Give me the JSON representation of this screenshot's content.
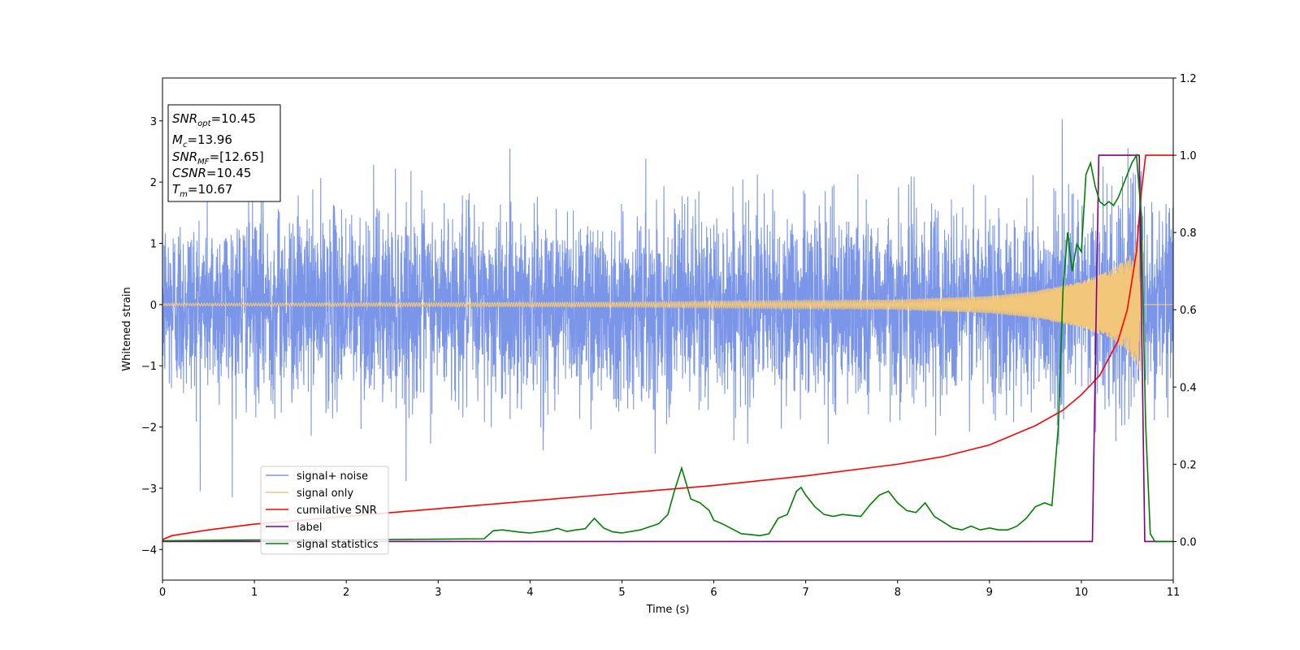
{
  "chart_data": {
    "type": "line",
    "xlabel": "Time (s)",
    "ylabel": "Whitened strain",
    "xlim": [
      0,
      11
    ],
    "ylim_left": [
      -4.5,
      3.7
    ],
    "ylim_right": [
      -0.1,
      1.2
    ],
    "x_ticks": [
      0,
      1,
      2,
      3,
      4,
      5,
      6,
      7,
      8,
      9,
      10,
      11
    ],
    "y_ticks_left": [
      -4,
      -3,
      -2,
      -1,
      0,
      1,
      2,
      3
    ],
    "y_ticks_right": [
      0.0,
      0.2,
      0.4,
      0.6,
      0.8,
      1.0,
      1.2
    ],
    "y_tick_labels_left": [
      "−4",
      "−3",
      "−2",
      "−1",
      "0",
      "1",
      "2",
      "3"
    ],
    "y_tick_labels_right": [
      "0.0",
      "0.2",
      "0.4",
      "0.6",
      "0.8",
      "1.0",
      "1.2"
    ],
    "grid": false,
    "legend_position": "lower-left",
    "info_box": {
      "snr_opt_label": "SNR",
      "snr_opt_sub": "opt",
      "snr_opt_value": "=10.45",
      "mc_label": "M",
      "mc_sub": "c",
      "mc_value": "=13.96",
      "snr_mf_label": "SNR",
      "snr_mf_sub": "MF",
      "snr_mf_value": "=[12.65]",
      "csnr_label": "CSNR",
      "csnr_value": "=10.45",
      "tm_label": "T",
      "tm_sub": "m",
      "tm_value": "=10.67"
    },
    "series": [
      {
        "name": "signal+ noise",
        "axis": "left",
        "color": "#7b96e8",
        "noise_std": 0.75,
        "y_range": [
          -4.15,
          3.3
        ]
      },
      {
        "name": "signal only",
        "axis": "left",
        "color": "#f2c77a",
        "envelope_x": [
          0,
          5,
          8,
          9,
          9.5,
          10,
          10.3,
          10.5,
          10.6,
          10.67
        ],
        "envelope_y": [
          0.02,
          0.04,
          0.08,
          0.14,
          0.22,
          0.38,
          0.55,
          0.75,
          1.0,
          1.3
        ]
      },
      {
        "name": "cumilative SNR",
        "axis": "right",
        "color": "#ff0000",
        "x": [
          0,
          0.1,
          0.5,
          1,
          2,
          3,
          4,
          5,
          6,
          7,
          8,
          8.5,
          9,
          9.5,
          9.8,
          10,
          10.2,
          10.4,
          10.5,
          10.6,
          10.65,
          10.7,
          11
        ],
        "y": [
          0.005,
          0.015,
          0.03,
          0.045,
          0.065,
          0.085,
          0.105,
          0.125,
          0.145,
          0.17,
          0.2,
          0.22,
          0.25,
          0.3,
          0.34,
          0.38,
          0.43,
          0.52,
          0.6,
          0.75,
          0.9,
          1.0,
          1.0
        ]
      },
      {
        "name": "label",
        "axis": "right",
        "color": "#800080",
        "x": [
          0,
          10.12,
          10.19,
          10.63,
          10.69,
          11
        ],
        "y": [
          0,
          0,
          1,
          1,
          0,
          0
        ]
      },
      {
        "name": "signal statistics",
        "axis": "right",
        "color": "#008000",
        "x": [
          0,
          0.5,
          1,
          1.5,
          2,
          2.5,
          3,
          3.5,
          3.6,
          3.7,
          3.9,
          4.0,
          4.2,
          4.3,
          4.4,
          4.5,
          4.6,
          4.7,
          4.8,
          4.9,
          5.0,
          5.2,
          5.3,
          5.4,
          5.5,
          5.57,
          5.65,
          5.75,
          5.85,
          5.95,
          6.0,
          6.1,
          6.3,
          6.4,
          6.5,
          6.6,
          6.7,
          6.8,
          6.9,
          6.95,
          7.0,
          7.1,
          7.2,
          7.3,
          7.4,
          7.6,
          7.7,
          7.8,
          7.9,
          8.0,
          8.1,
          8.2,
          8.3,
          8.4,
          8.5,
          8.6,
          8.7,
          8.8,
          8.9,
          9.0,
          9.1,
          9.2,
          9.3,
          9.4,
          9.5,
          9.6,
          9.68,
          9.75,
          9.8,
          9.85,
          9.9,
          9.95,
          10.0,
          10.05,
          10.1,
          10.15,
          10.2,
          10.25,
          10.3,
          10.35,
          10.4,
          10.45,
          10.5,
          10.55,
          10.6,
          10.65,
          10.7,
          10.75,
          10.8,
          11
        ],
        "y": [
          0.002,
          0.003,
          0.004,
          0.004,
          0.005,
          0.005,
          0.006,
          0.007,
          0.028,
          0.03,
          0.024,
          0.022,
          0.028,
          0.034,
          0.026,
          0.03,
          0.033,
          0.06,
          0.035,
          0.025,
          0.022,
          0.03,
          0.038,
          0.046,
          0.07,
          0.13,
          0.19,
          0.11,
          0.1,
          0.08,
          0.055,
          0.045,
          0.02,
          0.018,
          0.015,
          0.02,
          0.06,
          0.07,
          0.13,
          0.14,
          0.12,
          0.09,
          0.07,
          0.065,
          0.07,
          0.065,
          0.095,
          0.12,
          0.13,
          0.1,
          0.08,
          0.075,
          0.1,
          0.065,
          0.05,
          0.035,
          0.03,
          0.04,
          0.03,
          0.035,
          0.03,
          0.03,
          0.04,
          0.06,
          0.09,
          0.1,
          0.093,
          0.3,
          0.65,
          0.8,
          0.7,
          0.77,
          0.75,
          0.95,
          0.98,
          0.92,
          0.88,
          0.87,
          0.88,
          0.87,
          0.89,
          0.92,
          0.95,
          0.98,
          1.0,
          0.85,
          0.3,
          0.02,
          0.0,
          0.0
        ]
      }
    ]
  }
}
